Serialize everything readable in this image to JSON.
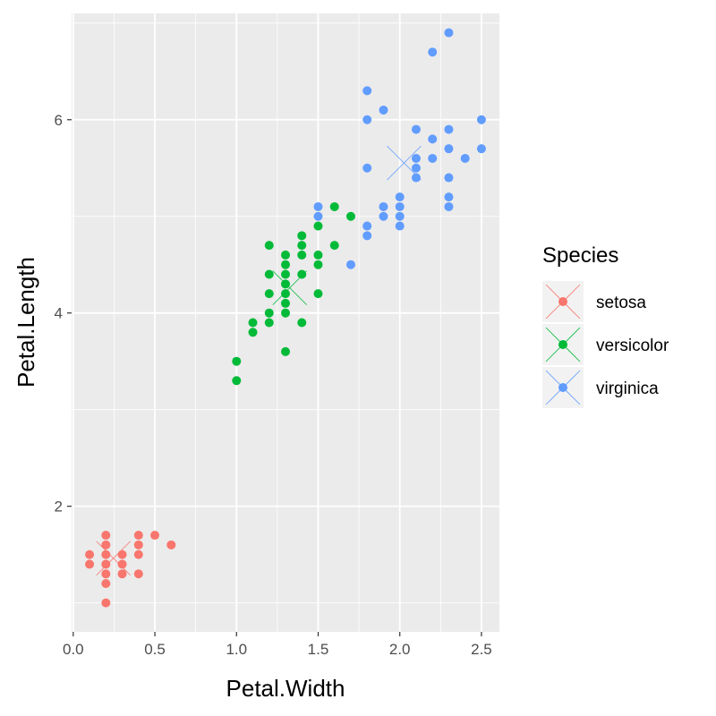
{
  "chart_data": {
    "type": "scatter",
    "xlabel": "Petal.Width",
    "ylabel": "Petal.Length",
    "xlim": [
      -0.01,
      2.61
    ],
    "ylim": [
      0.7,
      7.1
    ],
    "x_ticks": [
      {
        "value": 0.0,
        "label": "0.0"
      },
      {
        "value": 0.5,
        "label": "0.5"
      },
      {
        "value": 1.0,
        "label": "1.0"
      },
      {
        "value": 1.5,
        "label": "1.5"
      },
      {
        "value": 2.0,
        "label": "2.0"
      },
      {
        "value": 2.5,
        "label": "2.5"
      }
    ],
    "y_ticks": [
      {
        "value": 2,
        "label": "2"
      },
      {
        "value": 4,
        "label": "4"
      },
      {
        "value": 6,
        "label": "6"
      }
    ],
    "grid": true,
    "legend": {
      "title": "Species",
      "position": "right"
    },
    "series": [
      {
        "name": "setosa",
        "color": "#F8766D",
        "centroid": [
          0.246,
          1.462
        ],
        "points": [
          [
            0.1,
            1.5
          ],
          [
            0.1,
            1.4
          ],
          [
            0.2,
            1.7
          ],
          [
            0.2,
            1.6
          ],
          [
            0.2,
            1.5
          ],
          [
            0.2,
            1.4
          ],
          [
            0.2,
            1.3
          ],
          [
            0.2,
            1.2
          ],
          [
            0.2,
            1.0
          ],
          [
            0.3,
            1.5
          ],
          [
            0.3,
            1.4
          ],
          [
            0.3,
            1.3
          ],
          [
            0.4,
            1.7
          ],
          [
            0.4,
            1.6
          ],
          [
            0.4,
            1.5
          ],
          [
            0.4,
            1.3
          ],
          [
            0.5,
            1.7
          ],
          [
            0.6,
            1.6
          ]
        ]
      },
      {
        "name": "versicolor",
        "color": "#00BA38",
        "centroid": [
          1.326,
          4.26
        ],
        "points": [
          [
            1.0,
            3.5
          ],
          [
            1.0,
            3.3
          ],
          [
            1.1,
            3.9
          ],
          [
            1.1,
            3.8
          ],
          [
            1.2,
            4.7
          ],
          [
            1.2,
            4.4
          ],
          [
            1.2,
            4.2
          ],
          [
            1.2,
            4.0
          ],
          [
            1.2,
            3.9
          ],
          [
            1.3,
            4.6
          ],
          [
            1.3,
            4.5
          ],
          [
            1.3,
            4.4
          ],
          [
            1.3,
            4.3
          ],
          [
            1.3,
            4.2
          ],
          [
            1.3,
            4.1
          ],
          [
            1.3,
            4.0
          ],
          [
            1.3,
            3.6
          ],
          [
            1.4,
            4.8
          ],
          [
            1.4,
            4.7
          ],
          [
            1.4,
            4.6
          ],
          [
            1.4,
            4.4
          ],
          [
            1.4,
            3.9
          ],
          [
            1.5,
            4.9
          ],
          [
            1.5,
            4.6
          ],
          [
            1.5,
            4.5
          ],
          [
            1.5,
            4.2
          ],
          [
            1.6,
            5.1
          ],
          [
            1.6,
            4.7
          ],
          [
            1.7,
            5.0
          ]
        ]
      },
      {
        "name": "virginica",
        "color": "#619CFF",
        "centroid": [
          2.026,
          5.552
        ],
        "points": [
          [
            1.5,
            5.1
          ],
          [
            1.5,
            5.0
          ],
          [
            1.7,
            4.5
          ],
          [
            1.8,
            6.3
          ],
          [
            1.8,
            6.0
          ],
          [
            1.8,
            5.5
          ],
          [
            1.8,
            4.9
          ],
          [
            1.8,
            4.8
          ],
          [
            1.9,
            6.1
          ],
          [
            1.9,
            5.1
          ],
          [
            1.9,
            5.0
          ],
          [
            2.0,
            5.2
          ],
          [
            2.0,
            5.1
          ],
          [
            2.0,
            5.0
          ],
          [
            2.0,
            4.9
          ],
          [
            2.1,
            5.9
          ],
          [
            2.1,
            5.6
          ],
          [
            2.1,
            5.5
          ],
          [
            2.1,
            5.4
          ],
          [
            2.2,
            6.7
          ],
          [
            2.2,
            5.8
          ],
          [
            2.2,
            5.6
          ],
          [
            2.3,
            6.9
          ],
          [
            2.3,
            5.9
          ],
          [
            2.3,
            5.7
          ],
          [
            2.3,
            5.4
          ],
          [
            2.3,
            5.2
          ],
          [
            2.3,
            5.1
          ],
          [
            2.4,
            5.6
          ],
          [
            2.5,
            6.0
          ],
          [
            2.5,
            5.7
          ]
        ]
      }
    ]
  }
}
